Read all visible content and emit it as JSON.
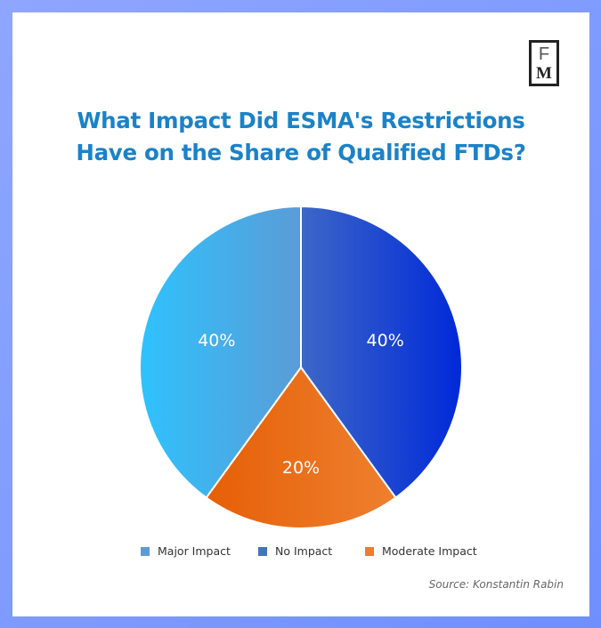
{
  "brand": {
    "logo_top": "F",
    "logo_bottom": "M"
  },
  "colors": {
    "frame": "#7d9bff",
    "title": "#1b82c7",
    "major_start": "#2ec2fd",
    "major_end": "#5b9cd6",
    "no_start": "#3d67c7",
    "no_end": "#0029d9",
    "moderate_start": "#e65f06",
    "moderate_end": "#ee802f",
    "legend_major": "#5b9cd6",
    "legend_no": "#4472c4",
    "legend_moderate": "#ed7d31"
  },
  "chart_data": {
    "type": "pie",
    "title_line1": "What Impact Did ESMA's Restrictions",
    "title_line2": "Have on the Share of Qualified FTDs?",
    "slices": [
      {
        "label": "No Impact",
        "value": 40,
        "display": "40%"
      },
      {
        "label": "Moderate Impact",
        "value": 20,
        "display": "20%"
      },
      {
        "label": "Major Impact",
        "value": 40,
        "display": "40%"
      }
    ],
    "legend": [
      "Major Impact",
      "No Impact",
      "Moderate Impact"
    ],
    "legend_placement": "bottom",
    "source": "Source: Konstantin Rabin"
  }
}
